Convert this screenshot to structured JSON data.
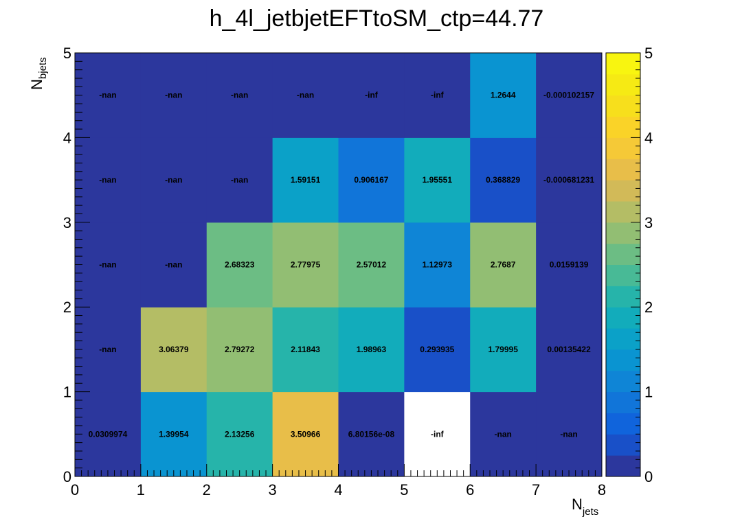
{
  "chart_data": {
    "type": "heatmap",
    "title": "h_4l_jetbjetEFTtoSM_ctp=44.77",
    "xlabel": {
      "main": "N",
      "sub": "jets"
    },
    "ylabel": {
      "main": "N",
      "sub": "bjets"
    },
    "xlim": [
      0,
      8
    ],
    "ylim": [
      0,
      5
    ],
    "zlim": [
      0,
      5
    ],
    "x_ticks": [
      "0",
      "1",
      "2",
      "3",
      "4",
      "5",
      "6",
      "7",
      "8"
    ],
    "y_ticks": [
      "0",
      "1",
      "2",
      "3",
      "4",
      "5"
    ],
    "z_ticks": [
      "0",
      "1",
      "2",
      "3",
      "4",
      "5"
    ],
    "colormap": "parula",
    "cells": [
      {
        "x": 0,
        "y": 0,
        "value": 0.0309974,
        "label": "0.0309974"
      },
      {
        "x": 1,
        "y": 0,
        "value": 1.39954,
        "label": "1.39954"
      },
      {
        "x": 2,
        "y": 0,
        "value": 2.13256,
        "label": "2.13256"
      },
      {
        "x": 3,
        "y": 0,
        "value": 3.50966,
        "label": "3.50966"
      },
      {
        "x": 4,
        "y": 0,
        "value": 6.80156e-08,
        "label": "6.80156e-08"
      },
      {
        "x": 5,
        "y": 0,
        "value": null,
        "label": "-inf",
        "empty": true
      },
      {
        "x": 6,
        "y": 0,
        "value": null,
        "label": "-nan"
      },
      {
        "x": 7,
        "y": 0,
        "value": null,
        "label": "-nan"
      },
      {
        "x": 0,
        "y": 1,
        "value": null,
        "label": "-nan"
      },
      {
        "x": 1,
        "y": 1,
        "value": 3.06379,
        "label": "3.06379"
      },
      {
        "x": 2,
        "y": 1,
        "value": 2.79272,
        "label": "2.79272"
      },
      {
        "x": 3,
        "y": 1,
        "value": 2.11843,
        "label": "2.11843"
      },
      {
        "x": 4,
        "y": 1,
        "value": 1.98963,
        "label": "1.98963"
      },
      {
        "x": 5,
        "y": 1,
        "value": 0.293935,
        "label": "0.293935"
      },
      {
        "x": 6,
        "y": 1,
        "value": 1.79995,
        "label": "1.79995"
      },
      {
        "x": 7,
        "y": 1,
        "value": 0.00135422,
        "label": "0.00135422"
      },
      {
        "x": 0,
        "y": 2,
        "value": null,
        "label": "-nan"
      },
      {
        "x": 1,
        "y": 2,
        "value": null,
        "label": "-nan"
      },
      {
        "x": 2,
        "y": 2,
        "value": 2.68323,
        "label": "2.68323"
      },
      {
        "x": 3,
        "y": 2,
        "value": 2.77975,
        "label": "2.77975"
      },
      {
        "x": 4,
        "y": 2,
        "value": 2.57012,
        "label": "2.57012"
      },
      {
        "x": 5,
        "y": 2,
        "value": 1.12973,
        "label": "1.12973"
      },
      {
        "x": 6,
        "y": 2,
        "value": 2.7687,
        "label": "2.7687"
      },
      {
        "x": 7,
        "y": 2,
        "value": 0.0159139,
        "label": "0.0159139"
      },
      {
        "x": 0,
        "y": 3,
        "value": null,
        "label": "-nan"
      },
      {
        "x": 1,
        "y": 3,
        "value": null,
        "label": "-nan"
      },
      {
        "x": 2,
        "y": 3,
        "value": null,
        "label": "-nan"
      },
      {
        "x": 3,
        "y": 3,
        "value": 1.59151,
        "label": "1.59151"
      },
      {
        "x": 4,
        "y": 3,
        "value": 0.906167,
        "label": "0.906167"
      },
      {
        "x": 5,
        "y": 3,
        "value": 1.95551,
        "label": "1.95551"
      },
      {
        "x": 6,
        "y": 3,
        "value": 0.368829,
        "label": "0.368829"
      },
      {
        "x": 7,
        "y": 3,
        "value": -0.000681231,
        "label": "-0.000681231"
      },
      {
        "x": 0,
        "y": 4,
        "value": null,
        "label": "-nan"
      },
      {
        "x": 1,
        "y": 4,
        "value": null,
        "label": "-nan"
      },
      {
        "x": 2,
        "y": 4,
        "value": null,
        "label": "-nan"
      },
      {
        "x": 3,
        "y": 4,
        "value": null,
        "label": "-nan"
      },
      {
        "x": 4,
        "y": 4,
        "value": null,
        "label": "-inf"
      },
      {
        "x": 5,
        "y": 4,
        "value": null,
        "label": "-inf"
      },
      {
        "x": 6,
        "y": 4,
        "value": 1.2644,
        "label": "1.2644"
      },
      {
        "x": 7,
        "y": 4,
        "value": -0.000102157,
        "label": "-0.000102157"
      }
    ]
  }
}
